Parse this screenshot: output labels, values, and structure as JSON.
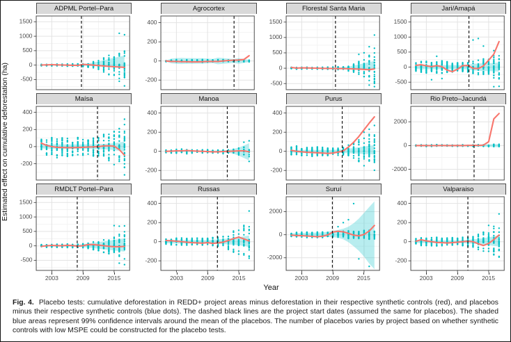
{
  "figure": {
    "y_axis_label": "Estimated effect on cumulative deforestation (ha)",
    "x_axis_label": "Year",
    "x_ticks": [
      2003,
      2009,
      2015
    ],
    "x_minor_gridlines": [
      2006,
      2012
    ],
    "x_domain": [
      2000,
      2018
    ],
    "years": [
      2001,
      2002,
      2003,
      2004,
      2005,
      2006,
      2007,
      2008,
      2009,
      2010,
      2011,
      2012,
      2013,
      2014,
      2015,
      2016,
      2017
    ],
    "legend_semantics": {
      "red_line": "project area minus synthetic control",
      "blue_dots": "placebos minus their synthetic controls",
      "dashed_line": "project start date",
      "shaded_area": "99% confidence interval around placebo mean"
    },
    "colors": {
      "red_line": "#F8766D",
      "placebo_dot": "#00BFC4",
      "band_fill": "#00BFC4",
      "dash_line": "#1a1a1a",
      "strip_bg": "#d9d9d9",
      "panel_border": "#4d4d4d",
      "grid_major": "#e3e3e3",
      "grid_minor": "#f1f1f1",
      "tick_text": "#4a4a4a"
    }
  },
  "caption": {
    "label": "Fig. 4.",
    "text": "Placebo tests: cumulative deforestation in REDD+ project areas minus deforestation in their respective synthetic controls (red), and placebos minus their respective synthetic controls (blue dots). The dashed black lines are the project start dates (assumed the same for placebos). The shaded blue areas represent 99% confidence intervals around the mean of the placebos. The number of placebos varies by project based on whether synthetic controls with low MSPE could be constructed for the placebo tests."
  },
  "chart_data": [
    {
      "type": "line+scatter",
      "title": "ADPML Portel–Para",
      "ylim": [
        -850,
        1700
      ],
      "yticks": [
        -500,
        0,
        500,
        1000,
        1500
      ],
      "project_start": 2008.7,
      "n_placebos": 24,
      "red_line": [
        5,
        10,
        15,
        10,
        5,
        0,
        -5,
        -10,
        25,
        15,
        0,
        -15,
        -30,
        -45,
        -55,
        -65,
        -75
      ],
      "band_lo": [
        -15,
        -18,
        -18,
        -20,
        -20,
        -22,
        -22,
        -25,
        -25,
        -30,
        -35,
        -40,
        -45,
        -50,
        -55,
        -60,
        -65
      ],
      "band_hi": [
        15,
        18,
        18,
        20,
        20,
        22,
        25,
        30,
        40,
        60,
        90,
        130,
        170,
        210,
        250,
        290,
        330
      ],
      "dot_spread": [
        25,
        30,
        30,
        35,
        35,
        40,
        40,
        45,
        55,
        80,
        120,
        180,
        250,
        350,
        450,
        550,
        650
      ],
      "outlier_dots": [
        [
          2016,
          1100
        ],
        [
          2017,
          1050
        ],
        [
          2017,
          -720
        ],
        [
          2016,
          -560
        ],
        [
          2015,
          -350
        ]
      ]
    },
    {
      "type": "line+scatter",
      "title": "Agrocortex",
      "ylim": [
        -300,
        470
      ],
      "yticks": [
        -200,
        0,
        200,
        400
      ],
      "project_start": 2014.1,
      "n_placebos": 12,
      "red_line": [
        0,
        -5,
        -5,
        -8,
        -8,
        -10,
        -10,
        -8,
        -5,
        -5,
        -5,
        0,
        5,
        8,
        10,
        15,
        55
      ],
      "band_lo": [
        -6,
        -25,
        -30,
        -32,
        -30,
        -30,
        -28,
        -28,
        -25,
        -22,
        -35,
        -30,
        -25,
        -20,
        -28,
        -20,
        -12
      ],
      "band_hi": [
        6,
        25,
        30,
        32,
        30,
        30,
        28,
        28,
        25,
        22,
        35,
        30,
        25,
        20,
        28,
        20,
        12
      ],
      "dot_spread": [
        8,
        12,
        15,
        15,
        15,
        15,
        14,
        14,
        12,
        12,
        15,
        14,
        12,
        12,
        14,
        12,
        10
      ],
      "outlier_dots": []
    },
    {
      "type": "line+scatter",
      "title": "Florestal Santa Maria",
      "ylim": [
        -700,
        1700
      ],
      "yticks": [
        -500,
        0,
        500,
        1000,
        1500
      ],
      "project_start": 2009.5,
      "n_placebos": 24,
      "red_line": [
        25,
        5,
        10,
        8,
        5,
        0,
        -5,
        -8,
        -10,
        -15,
        -15,
        -20,
        -25,
        -30,
        -40,
        -50,
        -25
      ],
      "band_lo": [
        -12,
        -15,
        -15,
        -15,
        -15,
        -15,
        -15,
        -18,
        -18,
        -20,
        -22,
        -25,
        -28,
        -32,
        -36,
        -40,
        -45
      ],
      "band_hi": [
        12,
        15,
        15,
        15,
        15,
        15,
        15,
        18,
        18,
        25,
        35,
        55,
        85,
        120,
        160,
        200,
        235
      ],
      "dot_spread": [
        25,
        30,
        30,
        30,
        30,
        30,
        35,
        35,
        40,
        50,
        60,
        90,
        150,
        220,
        300,
        420,
        520
      ],
      "outlier_dots": [
        [
          2017,
          1080
        ],
        [
          2016,
          700
        ],
        [
          2017,
          -600
        ],
        [
          2016,
          -550
        ],
        [
          2015,
          500
        ],
        [
          2014,
          450
        ],
        [
          2017,
          650
        ]
      ]
    },
    {
      "type": "line+scatter",
      "title": "Jari/Amapá",
      "ylim": [
        -750,
        1700
      ],
      "yticks": [
        -500,
        0,
        500,
        1000,
        1500
      ],
      "project_start": 2011.2,
      "n_placebos": 30,
      "red_line": [
        60,
        80,
        45,
        15,
        50,
        15,
        -100,
        -150,
        -70,
        50,
        55,
        -40,
        -50,
        40,
        230,
        430,
        850
      ],
      "band_lo": [
        -60,
        -70,
        -70,
        -70,
        -70,
        -70,
        -70,
        -70,
        -70,
        -70,
        -80,
        -110,
        -120,
        -130,
        -130,
        -140,
        -150
      ],
      "band_hi": [
        60,
        70,
        70,
        70,
        70,
        70,
        70,
        70,
        70,
        70,
        80,
        110,
        120,
        130,
        130,
        140,
        150
      ],
      "dot_spread": [
        140,
        190,
        200,
        170,
        200,
        210,
        180,
        160,
        150,
        150,
        160,
        210,
        250,
        280,
        310,
        380,
        420
      ],
      "outlier_dots": [
        [
          2004,
          -420
        ],
        [
          2006,
          -380
        ],
        [
          2005,
          360
        ],
        [
          2012,
          900
        ],
        [
          2013,
          950
        ],
        [
          2016,
          -650
        ],
        [
          2017,
          -640
        ],
        [
          2016,
          550
        ],
        [
          2014,
          700
        ]
      ]
    },
    {
      "type": "line+scatter",
      "title": "Maísa",
      "ylim": [
        -390,
        470
      ],
      "yticks": [
        -200,
        0,
        200,
        400
      ],
      "project_start": 2011.8,
      "n_placebos": 26,
      "red_line": [
        40,
        15,
        0,
        -8,
        -10,
        -12,
        -12,
        -10,
        -8,
        -5,
        -3,
        0,
        8,
        10,
        5,
        -35,
        -100
      ],
      "band_lo": [
        -20,
        -25,
        -25,
        -25,
        -25,
        -25,
        -25,
        -25,
        -25,
        -25,
        -28,
        -30,
        -32,
        -35,
        -40,
        -50,
        -60
      ],
      "band_hi": [
        20,
        25,
        25,
        25,
        25,
        25,
        25,
        25,
        25,
        25,
        28,
        30,
        32,
        35,
        40,
        50,
        60
      ],
      "dot_spread": [
        85,
        120,
        130,
        130,
        120,
        120,
        110,
        110,
        100,
        100,
        110,
        120,
        145,
        165,
        185,
        210,
        260
      ],
      "outlier_dots": [
        [
          2017,
          320
        ],
        [
          2017,
          -330
        ],
        [
          2016,
          210
        ],
        [
          2015,
          -210
        ],
        [
          2017,
          -240
        ]
      ]
    },
    {
      "type": "line+scatter",
      "title": "Manoa",
      "ylim": [
        -300,
        470
      ],
      "yticks": [
        -200,
        0,
        200,
        400
      ],
      "project_start": 2012.8,
      "n_placebos": 14,
      "red_line": [
        0,
        2,
        5,
        5,
        8,
        5,
        2,
        0,
        -3,
        -5,
        -5,
        -2,
        0,
        2,
        5,
        5,
        -5
      ],
      "band_lo": [
        -5,
        -6,
        -6,
        -6,
        -6,
        -6,
        -6,
        -6,
        -6,
        -8,
        -8,
        -10,
        -15,
        -25,
        -45,
        -70,
        -95
      ],
      "band_hi": [
        5,
        6,
        6,
        6,
        6,
        6,
        6,
        6,
        6,
        8,
        8,
        10,
        15,
        25,
        40,
        60,
        85
      ],
      "dot_spread": [
        15,
        18,
        22,
        25,
        28,
        25,
        22,
        20,
        18,
        18,
        20,
        25,
        30,
        35,
        40,
        55,
        70
      ],
      "outlier_dots": [
        [
          2017,
          110
        ],
        [
          2017,
          -105
        ],
        [
          2016,
          95
        ]
      ]
    },
    {
      "type": "line+scatter",
      "title": "Purus",
      "ylim": [
        -300,
        470
      ],
      "yticks": [
        -200,
        0,
        200,
        400
      ],
      "project_start": 2010.8,
      "n_placebos": 24,
      "red_line": [
        10,
        0,
        -5,
        -10,
        -12,
        -15,
        -18,
        -22,
        -18,
        -8,
        5,
        45,
        95,
        155,
        225,
        295,
        360
      ],
      "band_lo": [
        -12,
        -15,
        -15,
        -15,
        -15,
        -15,
        -15,
        -15,
        -15,
        -15,
        -18,
        -20,
        -22,
        -25,
        -28,
        -30,
        -32
      ],
      "band_hi": [
        12,
        15,
        15,
        15,
        15,
        15,
        15,
        15,
        15,
        18,
        22,
        28,
        35,
        42,
        50,
        58,
        65
      ],
      "dot_spread": [
        45,
        55,
        60,
        60,
        55,
        50,
        48,
        45,
        42,
        42,
        48,
        65,
        95,
        125,
        155,
        180,
        205
      ],
      "outlier_dots": [
        [
          2017,
          270
        ],
        [
          2016,
          230
        ],
        [
          2015,
          200
        ],
        [
          2017,
          -100
        ],
        [
          2016,
          -90
        ]
      ]
    },
    {
      "type": "line+scatter",
      "title": "Rio Preto–Jacundá",
      "ylim": [
        -2900,
        3300
      ],
      "yticks": [
        -2000,
        0,
        2000
      ],
      "project_start": 2012.2,
      "n_placebos": 14,
      "red_line": [
        0,
        5,
        0,
        -5,
        0,
        5,
        0,
        0,
        5,
        0,
        10,
        25,
        10,
        35,
        320,
        2250,
        2700
      ],
      "band_lo": [
        -60,
        -80,
        -80,
        -80,
        -80,
        -80,
        -80,
        -80,
        -80,
        -80,
        -80,
        -90,
        -90,
        -100,
        -110,
        -120,
        -130
      ],
      "band_hi": [
        60,
        80,
        80,
        80,
        80,
        80,
        80,
        80,
        80,
        80,
        80,
        90,
        90,
        100,
        110,
        120,
        130
      ],
      "dot_spread": [
        45,
        65,
        75,
        75,
        75,
        65,
        65,
        65,
        65,
        65,
        65,
        75,
        75,
        85,
        95,
        105,
        115
      ],
      "outlier_dots": []
    },
    {
      "type": "line+scatter",
      "title": "RMDLT Portel–Para",
      "ylim": [
        -850,
        1700
      ],
      "yticks": [
        -500,
        0,
        500,
        1000,
        1500
      ],
      "project_start": 2007.9,
      "n_placebos": 28,
      "red_line": [
        -20,
        5,
        15,
        10,
        5,
        20,
        10,
        -10,
        5,
        45,
        45,
        25,
        5,
        -15,
        -30,
        -30,
        -20
      ],
      "band_lo": [
        -25,
        -30,
        -30,
        -30,
        -30,
        -32,
        -32,
        -35,
        -45,
        -60,
        -80,
        -100,
        -120,
        -140,
        -160,
        -180,
        -200
      ],
      "band_hi": [
        25,
        30,
        30,
        30,
        30,
        32,
        35,
        45,
        60,
        80,
        105,
        130,
        155,
        180,
        205,
        230,
        255
      ],
      "dot_spread": [
        45,
        50,
        50,
        55,
        55,
        60,
        60,
        60,
        75,
        95,
        135,
        185,
        235,
        300,
        380,
        450,
        500
      ],
      "outlier_dots": [
        [
          2015,
          700
        ],
        [
          2016,
          680
        ],
        [
          2016,
          -600
        ],
        [
          2017,
          -650
        ],
        [
          2017,
          690
        ]
      ]
    },
    {
      "type": "line+scatter",
      "title": "Russas",
      "ylim": [
        -300,
        470
      ],
      "yticks": [
        -200,
        0,
        200,
        400
      ],
      "project_start": 2010.9,
      "n_placebos": 24,
      "red_line": [
        12,
        10,
        5,
        0,
        -5,
        -10,
        -12,
        -15,
        -10,
        -18,
        -12,
        -5,
        12,
        32,
        48,
        30,
        8
      ],
      "band_lo": [
        -15,
        -18,
        -18,
        -18,
        -18,
        -18,
        -18,
        -18,
        -18,
        -20,
        -22,
        -25,
        -28,
        -32,
        -38,
        -45,
        -55
      ],
      "band_hi": [
        15,
        18,
        18,
        18,
        18,
        18,
        18,
        18,
        18,
        20,
        24,
        28,
        34,
        40,
        48,
        56,
        65
      ],
      "dot_spread": [
        32,
        36,
        40,
        40,
        40,
        40,
        40,
        40,
        40,
        45,
        52,
        62,
        82,
        112,
        140,
        160,
        180
      ],
      "outlier_dots": [
        [
          2017,
          320
        ],
        [
          2016,
          170
        ],
        [
          2017,
          -150
        ],
        [
          2015,
          -130
        ]
      ]
    },
    {
      "type": "line+scatter",
      "title": "Suruí",
      "ylim": [
        -3100,
        3300
      ],
      "yticks": [
        -2000,
        0,
        2000
      ],
      "project_start": 2008.9,
      "n_placebos": 22,
      "red_line": [
        -40,
        -70,
        -90,
        -110,
        -140,
        -180,
        -130,
        -20,
        230,
        300,
        250,
        120,
        -40,
        -100,
        20,
        320,
        800
      ],
      "band_lo": [
        -120,
        -150,
        -160,
        -170,
        -180,
        -190,
        -190,
        -200,
        -220,
        -260,
        -400,
        -650,
        -1000,
        -1400,
        -1900,
        -2500,
        -3000
      ],
      "band_hi": [
        120,
        150,
        160,
        170,
        180,
        190,
        200,
        260,
        350,
        420,
        520,
        700,
        1000,
        1400,
        1900,
        2400,
        2900
      ],
      "dot_spread": [
        160,
        210,
        230,
        250,
        250,
        260,
        250,
        230,
        210,
        260,
        310,
        350,
        360,
        380,
        390,
        400,
        420
      ],
      "outlier_dots": [
        [
          2013,
          2700
        ],
        [
          2012,
          1300
        ],
        [
          2011,
          1050
        ],
        [
          2010,
          700
        ],
        [
          2014,
          -2100
        ],
        [
          2016,
          -2750
        ]
      ]
    },
    {
      "type": "line+scatter",
      "title": "Valparaiso",
      "ylim": [
        -300,
        470
      ],
      "yticks": [
        -200,
        0,
        200,
        400
      ],
      "project_start": 2011.0,
      "n_placebos": 24,
      "red_line": [
        5,
        20,
        8,
        0,
        -8,
        -10,
        -14,
        -10,
        -5,
        0,
        5,
        0,
        -22,
        -40,
        -18,
        22,
        70
      ],
      "band_lo": [
        -12,
        -15,
        -15,
        -15,
        -15,
        -15,
        -15,
        -15,
        -15,
        -16,
        -18,
        -20,
        -25,
        -32,
        -38,
        -44,
        -50
      ],
      "band_hi": [
        12,
        15,
        15,
        15,
        15,
        15,
        15,
        15,
        15,
        16,
        20,
        24,
        30,
        38,
        46,
        56,
        68
      ],
      "dot_spread": [
        32,
        42,
        42,
        46,
        46,
        46,
        42,
        42,
        40,
        46,
        52,
        62,
        82,
        102,
        122,
        142,
        165
      ],
      "outlier_dots": [
        [
          2017,
          290
        ],
        [
          2015,
          170
        ],
        [
          2016,
          160
        ],
        [
          2017,
          -80
        ],
        [
          2016,
          -70
        ]
      ]
    }
  ]
}
